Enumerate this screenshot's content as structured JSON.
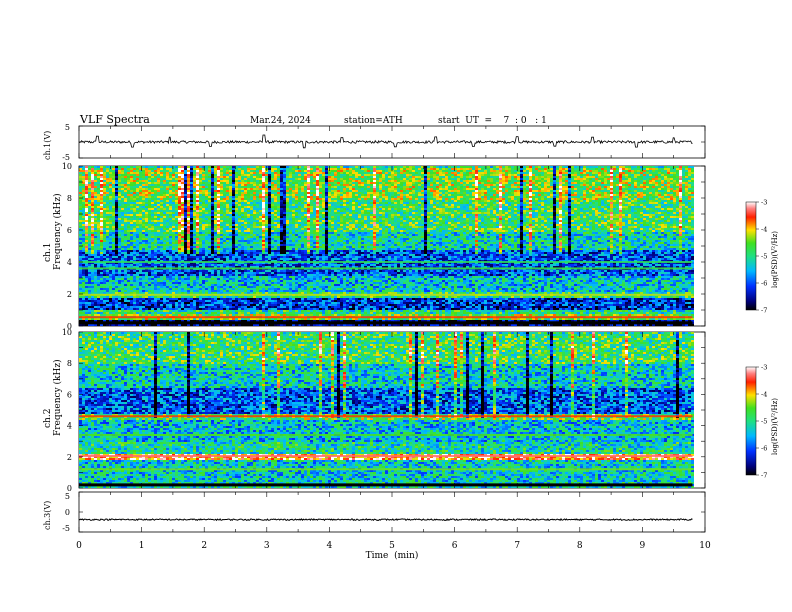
{
  "header": {
    "title": "VLF  Spectra",
    "date": "Mar.24, 2024",
    "station": "station=ATH",
    "start": "start  UT  =    7  : 0   : 1"
  },
  "chart_data": [
    {
      "type": "line",
      "panel": "ch1-waveform",
      "ylabel": "ch.1(V)",
      "ylim": [
        -5,
        5
      ],
      "yticks": [
        "5",
        "-5"
      ],
      "xlim": [
        0,
        10
      ],
      "series_color": "#000000",
      "x_end": 9.8,
      "baseline": 0,
      "noise_amplitude": 0.8,
      "spikes": [
        {
          "x": 0.3,
          "y": 1.8
        },
        {
          "x": 0.85,
          "y": -1.6
        },
        {
          "x": 1.45,
          "y": 1.5
        },
        {
          "x": 2.1,
          "y": -1.4
        },
        {
          "x": 2.95,
          "y": 2.2
        },
        {
          "x": 3.6,
          "y": -1.8
        },
        {
          "x": 4.2,
          "y": 1.4
        },
        {
          "x": 5.05,
          "y": -1.5
        },
        {
          "x": 5.7,
          "y": 1.6
        },
        {
          "x": 6.3,
          "y": -1.4
        },
        {
          "x": 7.0,
          "y": 1.7
        },
        {
          "x": 7.6,
          "y": -1.3
        },
        {
          "x": 8.2,
          "y": 1.5
        },
        {
          "x": 8.9,
          "y": -1.6
        },
        {
          "x": 9.5,
          "y": 1.3
        }
      ]
    },
    {
      "type": "heatmap",
      "panel": "ch2-spectrogram",
      "channel": "ch.1",
      "ylabel": "Frequency  (kHz)",
      "ylim": [
        0,
        10
      ],
      "yticks": [
        "0",
        "2",
        "4",
        "6",
        "8",
        "10"
      ],
      "xlim": [
        0,
        10
      ],
      "x_end": 9.8,
      "colorbar": {
        "label": "log(PSD)(V²/Hz)",
        "range": [
          -7,
          -3
        ],
        "ticks": [
          "-3",
          "-4",
          "-5",
          "-6",
          "-7"
        ]
      },
      "bands": [
        {
          "fmin": 0.0,
          "fmax": 0.4,
          "level": -6.8
        },
        {
          "fmin": 0.4,
          "fmax": 0.8,
          "level": -4.5
        },
        {
          "fmin": 0.8,
          "fmax": 1.1,
          "level": -5.0
        },
        {
          "fmin": 1.1,
          "fmax": 1.8,
          "level": -6.2
        },
        {
          "fmin": 1.8,
          "fmax": 2.2,
          "level": -4.9
        },
        {
          "fmin": 2.2,
          "fmax": 2.6,
          "level": -5.3
        },
        {
          "fmin": 2.6,
          "fmax": 3.2,
          "level": -5.4
        },
        {
          "fmin": 3.2,
          "fmax": 4.8,
          "level": -6.0
        },
        {
          "fmin": 4.8,
          "fmax": 6.0,
          "level": -5.2
        },
        {
          "fmin": 6.0,
          "fmax": 8.0,
          "level": -4.8
        },
        {
          "fmin": 8.0,
          "fmax": 10.0,
          "level": -4.5
        }
      ],
      "lines": [
        {
          "f": 0.55,
          "level": -3.6
        },
        {
          "f": 1.95,
          "level": -4.2
        },
        {
          "f": 3.6,
          "level": -4.6
        },
        {
          "f": 4.0,
          "level": -4.8
        }
      ]
    },
    {
      "type": "heatmap",
      "panel": "ch3-spectrogram",
      "channel": "ch.2",
      "ylabel": "Frequency  (kHz)",
      "ylim": [
        0,
        10
      ],
      "yticks": [
        "0",
        "2",
        "4",
        "6",
        "8",
        "10"
      ],
      "xlim": [
        0,
        10
      ],
      "x_end": 9.8,
      "colorbar": {
        "label": "log(PSD)(V²/Hz)",
        "range": [
          -7,
          -3
        ],
        "ticks": [
          "-3",
          "-4",
          "-5",
          "-6",
          "-7"
        ]
      },
      "bands": [
        {
          "fmin": 0.0,
          "fmax": 0.4,
          "level": -5.2
        },
        {
          "fmin": 0.4,
          "fmax": 1.9,
          "level": -5.3
        },
        {
          "fmin": 1.9,
          "fmax": 2.3,
          "level": -3.5
        },
        {
          "fmin": 2.3,
          "fmax": 3.0,
          "level": -5.1
        },
        {
          "fmin": 3.0,
          "fmax": 4.4,
          "level": -5.4
        },
        {
          "fmin": 4.4,
          "fmax": 4.8,
          "level": -4.6
        },
        {
          "fmin": 4.8,
          "fmax": 6.5,
          "level": -6.0
        },
        {
          "fmin": 6.5,
          "fmax": 8.0,
          "level": -5.3
        },
        {
          "fmin": 8.0,
          "fmax": 10.0,
          "level": -4.8
        }
      ],
      "lines": [
        {
          "f": 2.05,
          "level": -3.3
        },
        {
          "f": 4.6,
          "level": -3.6
        },
        {
          "f": 3.4,
          "level": -4.5
        },
        {
          "f": 1.2,
          "level": -4.4
        }
      ]
    },
    {
      "type": "line",
      "panel": "ch4-waveform",
      "ylabel": "ch.3(V)",
      "ylim": [
        -5,
        5
      ],
      "yticks": [
        "5",
        "0",
        "-5"
      ],
      "xlim": [
        0,
        10
      ],
      "series_color": "#000000",
      "x_end": 9.8,
      "baseline": -1.9,
      "noise_amplitude": 0.35,
      "spikes": []
    }
  ],
  "x_axis": {
    "label": "Time  (min)",
    "ticks": [
      "0",
      "1",
      "2",
      "3",
      "4",
      "5",
      "6",
      "7",
      "8",
      "9",
      "10"
    ]
  }
}
